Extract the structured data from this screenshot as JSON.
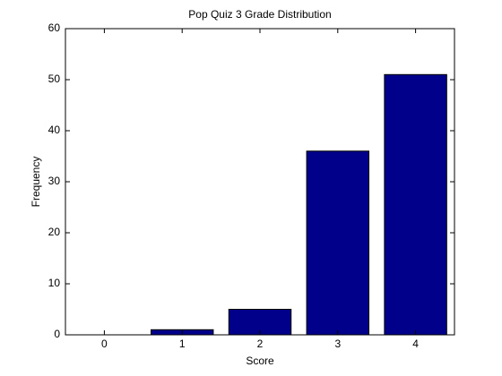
{
  "chart_data": {
    "type": "bar",
    "title": "Pop Quiz 3 Grade Distribution",
    "x_label": "Score",
    "y_label": "Frequency",
    "x": [
      0,
      1,
      2,
      3,
      4
    ],
    "values": [
      0,
      1,
      5,
      36,
      51
    ],
    "color": "#00008b",
    "bar_width": 0.8,
    "xlim": [
      -0.5,
      4.5
    ],
    "xticks": [
      0,
      1,
      2,
      3,
      4
    ],
    "ylim": [
      0,
      60
    ],
    "yticks": [
      0,
      10,
      20,
      30,
      40,
      50,
      60
    ],
    "grid": false
  }
}
